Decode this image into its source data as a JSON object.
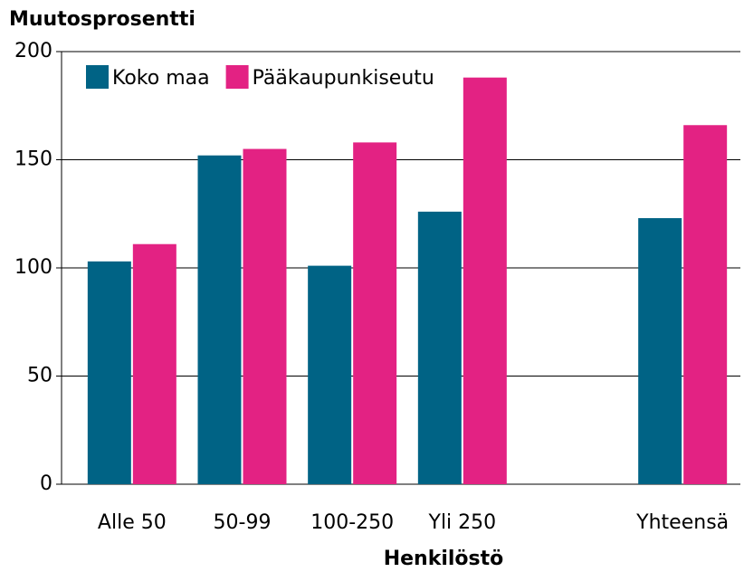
{
  "chart_data": {
    "type": "bar",
    "title": "Muutosprosentti",
    "x_label": "Henkilöstö",
    "categories": [
      "Alle 50",
      "50-99",
      "100-250",
      "Yli 250",
      null,
      "Yhteensä"
    ],
    "series": [
      {
        "name": "Koko maa",
        "color": "#006385",
        "values": [
          103,
          152,
          101,
          126,
          null,
          123
        ]
      },
      {
        "name": "Pääkaupunkiseutu",
        "color": "#e32283",
        "values": [
          111,
          155,
          158,
          188,
          null,
          166
        ]
      }
    ],
    "ylim": [
      0,
      200
    ],
    "yticks": [
      0,
      50,
      100,
      150,
      200
    ],
    "grid": true,
    "legend": "top-left"
  }
}
